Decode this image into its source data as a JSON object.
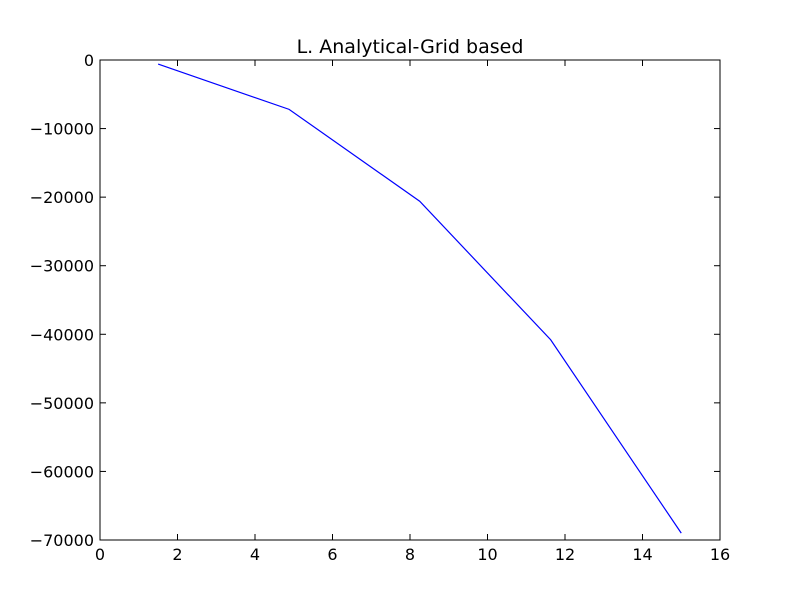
{
  "chart_data": {
    "type": "line",
    "title": "L. Analytical-Grid based",
    "xlabel": "",
    "ylabel": "",
    "xlim": [
      0,
      16
    ],
    "ylim": [
      -70000,
      0
    ],
    "x_ticks": [
      0,
      2,
      4,
      6,
      8,
      10,
      12,
      14,
      16
    ],
    "y_ticks": [
      0,
      -10000,
      -20000,
      -30000,
      -40000,
      -50000,
      -60000,
      -70000
    ],
    "x_tick_labels": [
      "0",
      "2",
      "4",
      "6",
      "8",
      "10",
      "12",
      "14",
      "16"
    ],
    "y_tick_labels": [
      "0",
      "−10000",
      "−20000",
      "−30000",
      "−40000",
      "−50000",
      "−60000",
      "−70000"
    ],
    "grid": false,
    "series": [
      {
        "color": "#0000ff",
        "x": [
          1.5,
          4.88,
          8.25,
          11.63,
          15.0
        ],
        "y": [
          -600,
          -7200,
          -20600,
          -40800,
          -69000
        ]
      }
    ]
  }
}
